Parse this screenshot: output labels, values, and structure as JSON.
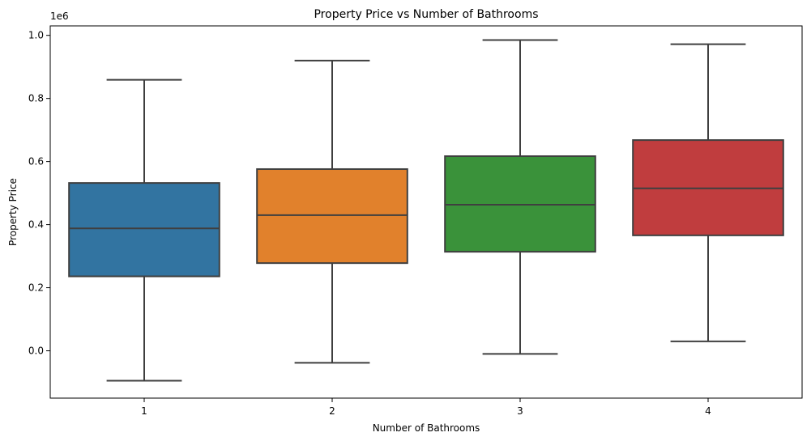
{
  "chart_data": {
    "type": "box",
    "title": "Property Price vs Number of Bathrooms",
    "xlabel": "Number of Bathrooms",
    "ylabel": "Property Price",
    "y_offset_label": "1e6",
    "ylim": [
      -0.15,
      1.03
    ],
    "yticks": [
      0.0,
      0.2,
      0.4,
      0.6,
      0.8,
      1.0
    ],
    "ytick_labels": [
      "0.0",
      "0.2",
      "0.4",
      "0.6",
      "0.8",
      "1.0"
    ],
    "categories": [
      "1",
      "2",
      "3",
      "4"
    ],
    "boxes": [
      {
        "category": "1",
        "whisker_low": -0.095,
        "q1": 0.236,
        "median": 0.388,
        "q3": 0.532,
        "whisker_high": 0.859,
        "color": "#3274a1"
      },
      {
        "category": "2",
        "whisker_low": -0.038,
        "q1": 0.278,
        "median": 0.43,
        "q3": 0.576,
        "whisker_high": 0.92,
        "color": "#e1812c"
      },
      {
        "category": "3",
        "whisker_low": -0.01,
        "q1": 0.314,
        "median": 0.463,
        "q3": 0.617,
        "whisker_high": 0.985,
        "color": "#3a923a"
      },
      {
        "category": "4",
        "whisker_low": 0.03,
        "q1": 0.366,
        "median": 0.515,
        "q3": 0.668,
        "whisker_high": 0.972,
        "color": "#c03d3e"
      }
    ],
    "grid": false,
    "line_color": "#3f3f3f"
  }
}
